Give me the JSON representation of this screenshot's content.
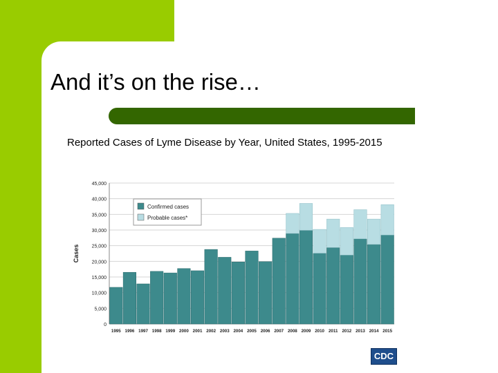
{
  "slide": {
    "title": "And it’s on the rise…",
    "subtitle": "Reported Cases of Lyme Disease by Year, United States, 1995-2015",
    "logo_text": "CDC"
  },
  "colors": {
    "green_block": "#99cc00",
    "title_bar": "#336600",
    "confirmed": "#3d8a8c",
    "probable": "#b8dde3"
  },
  "chart_data": {
    "type": "bar",
    "stacked": true,
    "categories": [
      "1995",
      "1996",
      "1997",
      "1998",
      "1999",
      "2000",
      "2001",
      "2002",
      "2003",
      "2004",
      "2005",
      "2006",
      "2007",
      "2008",
      "2009",
      "2010",
      "2011",
      "2012",
      "2013",
      "2014",
      "2015"
    ],
    "series": [
      {
        "name": "Confirmed cases",
        "values": [
          11700,
          16500,
          12800,
          16800,
          16300,
          17700,
          17000,
          23800,
          21300,
          19800,
          23300,
          19900,
          27400,
          28900,
          29900,
          22600,
          24400,
          22000,
          27200,
          25400,
          28400
        ]
      },
      {
        "name": "Probable cases*",
        "values": [
          0,
          0,
          0,
          0,
          0,
          0,
          0,
          0,
          0,
          0,
          0,
          0,
          0,
          6400,
          8600,
          7600,
          9100,
          8800,
          9300,
          8100,
          9700
        ]
      }
    ],
    "ylabel": "Cases",
    "ylim": [
      0,
      45000
    ],
    "yticks": [
      "0",
      "5,000",
      "10,000",
      "15,000",
      "20,000",
      "25,000",
      "30,000",
      "35,000",
      "40,000",
      "45,000"
    ],
    "grid": true,
    "legend_position": "top-left"
  }
}
